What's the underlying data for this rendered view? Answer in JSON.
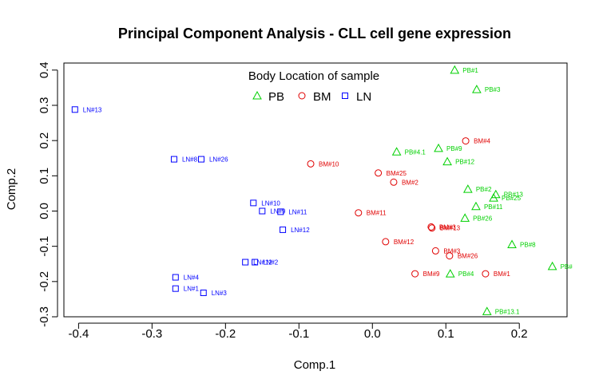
{
  "chart_data": {
    "type": "scatter",
    "title": "Principal Component Analysis - CLL cell gene expression",
    "xlabel": "Comp.1",
    "ylabel": "Comp.2",
    "xlim": [
      -0.42,
      0.265
    ],
    "ylim": [
      -0.3,
      0.42
    ],
    "xticks": [
      -0.4,
      -0.3,
      -0.2,
      -0.1,
      0.0,
      0.1,
      0.2
    ],
    "xtick_labels": [
      "-0.4",
      "-0.3",
      "-0.2",
      "-0.1",
      "0.0",
      "0.1",
      "0.2"
    ],
    "yticks": [
      -0.3,
      -0.2,
      -0.1,
      0.0,
      0.1,
      0.2,
      0.3,
      0.4
    ],
    "ytick_labels": [
      "-0.3",
      "-0.2",
      "-0.1",
      "0.0",
      "0.1",
      "0.2",
      "0.3",
      "0.4"
    ],
    "grid": false,
    "legend": {
      "title": "Body Location of sample",
      "placement": "top-center",
      "entries": [
        {
          "label": "PB",
          "marker": "triangle",
          "color": "#00d000"
        },
        {
          "label": "BM",
          "marker": "circle",
          "color": "#e00000"
        },
        {
          "label": "LN",
          "marker": "square",
          "color": "#0000ff"
        }
      ]
    },
    "series": [
      {
        "name": "PB",
        "marker": "triangle",
        "color": "#00d000",
        "points": [
          {
            "x": 0.112,
            "y": 0.4,
            "label": "PB#1"
          },
          {
            "x": 0.142,
            "y": 0.345,
            "label": "PB#3"
          },
          {
            "x": 0.033,
            "y": 0.168,
            "label": "PB#4.1"
          },
          {
            "x": 0.09,
            "y": 0.178,
            "label": "PB#9"
          },
          {
            "x": 0.102,
            "y": 0.14,
            "label": "PB#12"
          },
          {
            "x": 0.13,
            "y": 0.062,
            "label": "PB#2"
          },
          {
            "x": 0.168,
            "y": 0.047,
            "label": "PB#13"
          },
          {
            "x": 0.165,
            "y": 0.037,
            "label": "PB#25"
          },
          {
            "x": 0.141,
            "y": 0.013,
            "label": "PB#11"
          },
          {
            "x": 0.126,
            "y": -0.02,
            "label": "PB#26"
          },
          {
            "x": 0.19,
            "y": -0.095,
            "label": "PB#8"
          },
          {
            "x": 0.245,
            "y": -0.157,
            "label": "PB#"
          },
          {
            "x": 0.106,
            "y": -0.178,
            "label": "PB#4"
          },
          {
            "x": 0.156,
            "y": -0.285,
            "label": "PB#13.1"
          }
        ]
      },
      {
        "name": "BM",
        "marker": "circle",
        "color": "#e00000",
        "points": [
          {
            "x": 0.127,
            "y": 0.199,
            "label": "BM#4"
          },
          {
            "x": -0.084,
            "y": 0.134,
            "label": "BM#10"
          },
          {
            "x": 0.008,
            "y": 0.108,
            "label": "BM#25"
          },
          {
            "x": 0.029,
            "y": 0.082,
            "label": "BM#2"
          },
          {
            "x": -0.019,
            "y": -0.005,
            "label": "BM#11"
          },
          {
            "x": 0.08,
            "y": -0.045,
            "label": "BM#3"
          },
          {
            "x": 0.081,
            "y": -0.048,
            "label": "BM#13"
          },
          {
            "x": 0.018,
            "y": -0.087,
            "label": "BM#12"
          },
          {
            "x": 0.086,
            "y": -0.113,
            "label": "BM#3"
          },
          {
            "x": 0.105,
            "y": -0.127,
            "label": "BM#26"
          },
          {
            "x": 0.058,
            "y": -0.178,
            "label": "BM#9"
          },
          {
            "x": 0.154,
            "y": -0.178,
            "label": "BM#1"
          }
        ]
      },
      {
        "name": "LN",
        "marker": "square",
        "color": "#0000ff",
        "points": [
          {
            "x": -0.405,
            "y": 0.288,
            "label": "LN#13"
          },
          {
            "x": -0.27,
            "y": 0.147,
            "label": "LN#8"
          },
          {
            "x": -0.233,
            "y": 0.147,
            "label": "LN#26"
          },
          {
            "x": -0.162,
            "y": 0.023,
            "label": "LN#10"
          },
          {
            "x": -0.15,
            "y": 0.0,
            "label": "LN#9"
          },
          {
            "x": -0.125,
            "y": -0.002,
            "label": "LN#11"
          },
          {
            "x": -0.122,
            "y": -0.053,
            "label": "LN#12"
          },
          {
            "x": -0.173,
            "y": -0.145,
            "label": "LN#12"
          },
          {
            "x": -0.16,
            "y": -0.145,
            "label": "LN#2"
          },
          {
            "x": -0.268,
            "y": -0.188,
            "label": "LN#4"
          },
          {
            "x": -0.268,
            "y": -0.22,
            "label": "LN#1"
          },
          {
            "x": -0.23,
            "y": -0.232,
            "label": "LN#3"
          }
        ]
      }
    ]
  }
}
